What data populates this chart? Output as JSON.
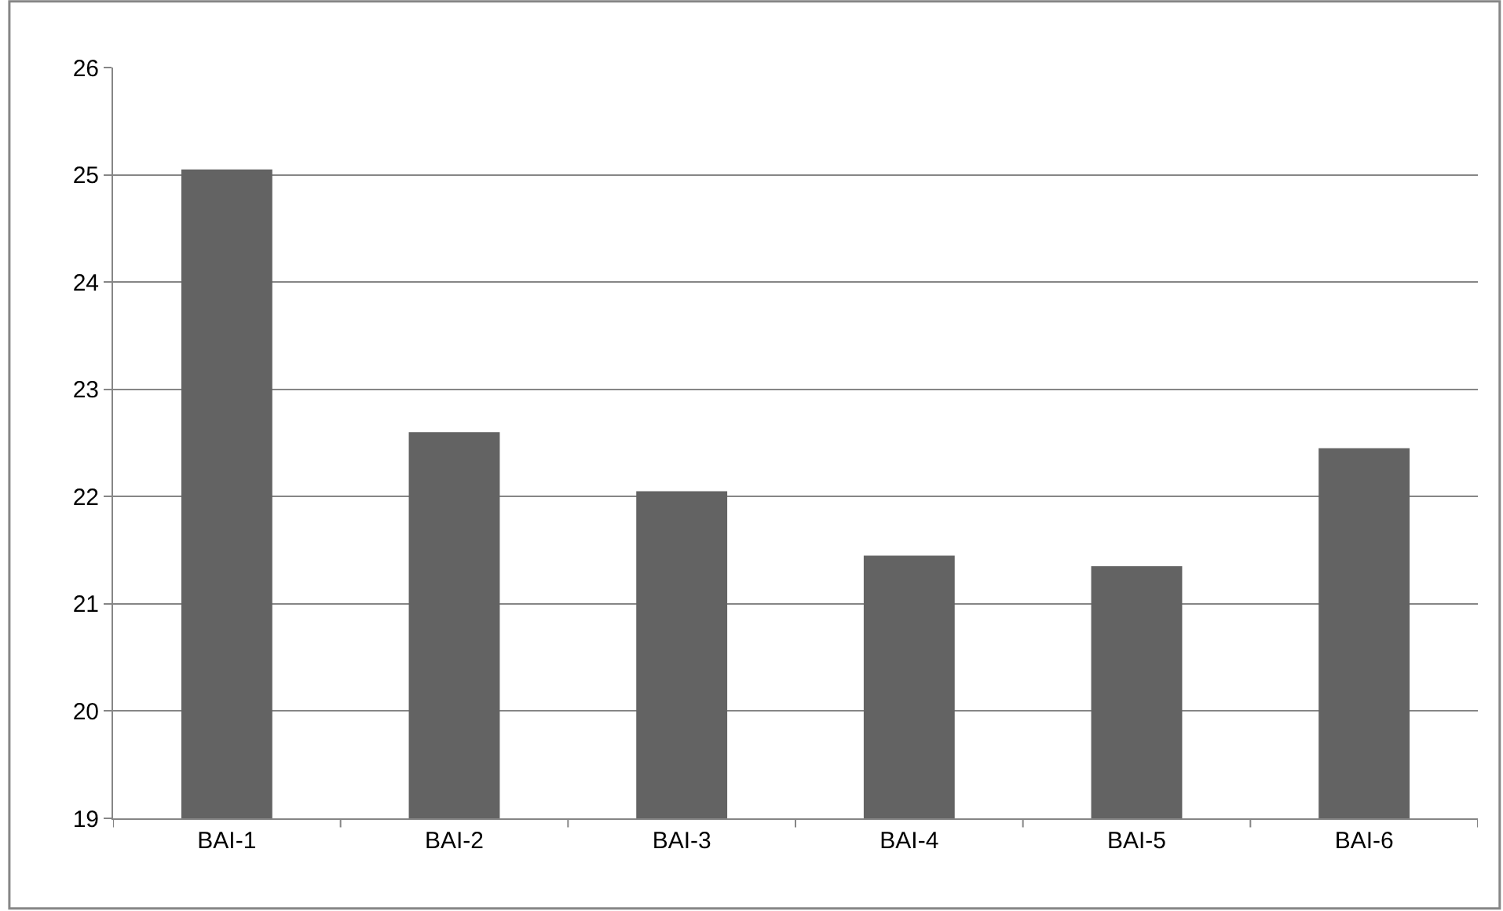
{
  "chart_data": {
    "type": "bar",
    "categories": [
      "BAI-1",
      "BAI-2",
      "BAI-3",
      "BAI-4",
      "BAI-5",
      "BAI-6"
    ],
    "values": [
      25.05,
      22.6,
      22.05,
      21.45,
      21.35,
      22.45
    ],
    "color": "#636363",
    "ylim": [
      19,
      26
    ],
    "yticks": [
      19,
      20,
      21,
      22,
      23,
      24,
      25,
      26
    ],
    "grid": "y",
    "legend": false
  }
}
